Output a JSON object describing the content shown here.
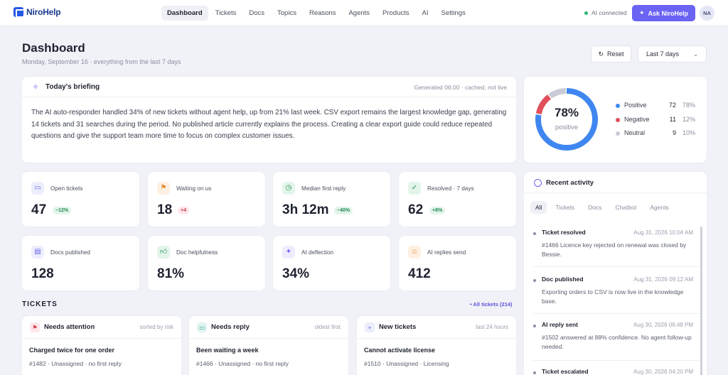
{
  "app": {
    "name": "NiroHelp"
  },
  "nav": [
    {
      "label": "Dashboard",
      "active": true
    },
    {
      "label": "Tickets"
    },
    {
      "label": "Docs"
    },
    {
      "label": "Topics"
    },
    {
      "label": "Reasons"
    },
    {
      "label": "Agents"
    },
    {
      "label": "Products"
    },
    {
      "label": "AI"
    },
    {
      "label": "Settings"
    }
  ],
  "status": {
    "ai": "AI connected"
  },
  "ask_button": "Ask NiroHelp",
  "user": {
    "initials": "NA"
  },
  "page": {
    "title": "Dashboard",
    "subtitle": "Monday, September 16 · everything from the last 7 days",
    "reset": "Reset",
    "range": "Last 7 days"
  },
  "briefing": {
    "title": "Today's briefing",
    "meta": "Generated 06:00 · cached, not live",
    "body": "The AI auto-responder handled 34% of new tickets without agent help, up from 21% last week. CSV export remains the largest knowledge gap, generating 14 tickets and 31 searches during the period. No published article currently explains the process. Creating a clear export guide could reduce repeated questions and give the support team more time to focus on complex customer issues."
  },
  "sentiment": {
    "headline": "78%",
    "label": "positive",
    "rows": [
      {
        "name": "Positive",
        "count": "72",
        "pct": "78%",
        "value": 78,
        "color": "#3f86f0"
      },
      {
        "name": "Negative",
        "count": "11",
        "pct": "12%",
        "value": 12,
        "color": "#e0505a"
      },
      {
        "name": "Neutral",
        "count": "9",
        "pct": "10%",
        "value": 10,
        "color": "#c9ccd6"
      }
    ]
  },
  "stats": [
    {
      "label": "Open tickets",
      "value": "47",
      "badge": "−12%",
      "tone": "green",
      "icon": "ticket-icon"
    },
    {
      "label": "Waiting on us",
      "value": "18",
      "badge": "+4",
      "tone": "red",
      "icon": "flag-icon"
    },
    {
      "label": "Median first reply",
      "value": "3h 12m",
      "badge": "−40%",
      "tone": "green",
      "icon": "clock-icon"
    },
    {
      "label": "Resolved · 7 days",
      "value": "62",
      "badge": "+8%",
      "tone": "green",
      "icon": "check-circle-icon"
    },
    {
      "label": "Docs published",
      "value": "128",
      "icon": "doc-icon"
    },
    {
      "label": "Doc helpfulness",
      "value": "81%",
      "icon": "thumbs-up-icon"
    },
    {
      "label": "AI deflection",
      "value": "34%",
      "icon": "sparkle-icon"
    },
    {
      "label": "AI replies send",
      "value": "412",
      "icon": "robot-icon"
    }
  ],
  "tickets": {
    "heading": "TICKETS",
    "all_link": "• All tickets (214)",
    "columns": [
      {
        "title": "Needs attention",
        "meta": "sorted by risk",
        "item_title": "Charged twice for one order",
        "item_sub": "#1482 · Unassigned · no first reply"
      },
      {
        "title": "Needs reply",
        "meta": "oldest first",
        "item_title": "Been waiting a week",
        "item_sub": "#1466 · Unassigned · no first reply"
      },
      {
        "title": "New tickets",
        "meta": "last 24 hours",
        "item_title": "Cannot activate license",
        "item_sub": "#1510 · Unassigned · Licensing"
      }
    ]
  },
  "activity": {
    "title": "Recent activity",
    "tabs": [
      "All",
      "Tickets",
      "Docs",
      "Chatbot",
      "Agents"
    ],
    "items": [
      {
        "title": "Ticket resolved",
        "date": "Aug 31, 2026 10:04 AM",
        "desc": "#1466 Licence key rejected on renewal was closed by Bessie."
      },
      {
        "title": "Doc published",
        "date": "Aug 31, 2026 09:12 AM",
        "desc": "Exporting orders to CSV is now live in the knowledge base."
      },
      {
        "title": "AI reply sent",
        "date": "Aug 30, 2026 06:48 PM",
        "desc": "#1502 answered at 88% confidence. No agent follow-up needed."
      },
      {
        "title": "Ticket escalated",
        "date": "Aug 30, 2026 04:20 PM",
        "desc": ""
      }
    ]
  }
}
